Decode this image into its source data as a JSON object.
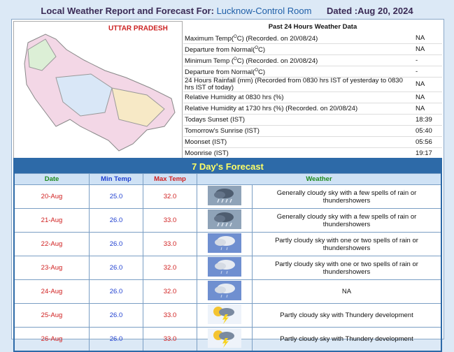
{
  "header": {
    "title": "Local Weather Report and Forecast For:",
    "station": "Lucknow-Control Room",
    "dated": "Dated :Aug 20, 2024"
  },
  "map": {
    "label": "UTTAR PRADESH"
  },
  "past": {
    "title": "Past 24 Hours Weather Data",
    "rows": [
      {
        "label": [
          "Maximum Temp(",
          "O",
          "C) (Recorded. on 20/08/24)"
        ],
        "value": "NA"
      },
      {
        "label": [
          "Departure from Normal(",
          "O",
          "C)"
        ],
        "value": "NA"
      },
      {
        "label": [
          "Minimum Temp (",
          "O",
          "C) (Recorded. on 20/08/24)"
        ],
        "value": "-"
      },
      {
        "label": [
          "Departure from Normal(",
          "O",
          "C)"
        ],
        "value": "-"
      },
      {
        "label": [
          "24 Hours Rainfall (mm) (Recorded from 0830 hrs IST of yesterday to 0830 hrs IST of today)"
        ],
        "value": "NA"
      },
      {
        "label": [
          "Relative Humidity at 0830 hrs (%)"
        ],
        "value": "NA"
      },
      {
        "label": [
          "Relative Humidity at 1730 hrs (%) (Recorded. on 20/08/24)"
        ],
        "value": "NA"
      },
      {
        "label": [
          "Todays Sunset (IST)"
        ],
        "value": "18:39"
      },
      {
        "label": [
          "Tomorrow's Sunrise (IST)"
        ],
        "value": "05:40"
      },
      {
        "label": [
          "Moonset (IST)"
        ],
        "value": "05:56"
      },
      {
        "label": [
          "Moonrise (IST)"
        ],
        "value": "19:17"
      }
    ]
  },
  "forecast": {
    "title": "7 Day's Forecast",
    "columns": [
      "Date",
      "Min Temp",
      "Max Temp",
      "Weather"
    ],
    "rows": [
      {
        "date": "20-Aug",
        "min": "25.0",
        "max": "32.0",
        "icon": "rain",
        "weather": "Generally cloudy sky with a few spells of rain or thundershowers"
      },
      {
        "date": "21-Aug",
        "min": "26.0",
        "max": "33.0",
        "icon": "rain",
        "weather": "Generally cloudy sky with a few spells of rain or thundershowers"
      },
      {
        "date": "22-Aug",
        "min": "26.0",
        "max": "33.0",
        "icon": "cloud",
        "weather": "Partly cloudy sky with one or two spells of rain or thundershowers"
      },
      {
        "date": "23-Aug",
        "min": "26.0",
        "max": "32.0",
        "icon": "cloud",
        "weather": "Partly cloudy sky with one or two spells of rain or thundershowers"
      },
      {
        "date": "24-Aug",
        "min": "26.0",
        "max": "32.0",
        "icon": "cloud",
        "weather": "NA"
      },
      {
        "date": "25-Aug",
        "min": "26.0",
        "max": "33.0",
        "icon": "thunder",
        "weather": "Partly cloudy sky with Thundery development"
      },
      {
        "date": "26-Aug",
        "min": "26.0",
        "max": "33.0",
        "icon": "thunder",
        "weather": "Partly cloudy sky with Thundery development"
      }
    ]
  }
}
